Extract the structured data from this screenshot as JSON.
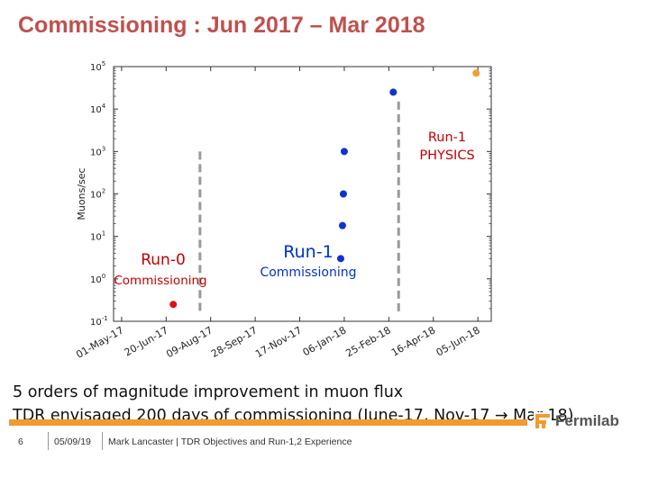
{
  "title": "Commissioning : Jun 2017 – Mar 2018",
  "chart_data": {
    "type": "scatter",
    "ylabel": "Muons/sec",
    "yscale": "log",
    "ylim": [
      0.1,
      100000
    ],
    "yticks": [
      {
        "base": "10",
        "exp": "5"
      },
      {
        "base": "10",
        "exp": "4"
      },
      {
        "base": "10",
        "exp": "3"
      },
      {
        "base": "10",
        "exp": "2"
      },
      {
        "base": "10",
        "exp": "1"
      },
      {
        "base": "10",
        "exp": "0"
      },
      {
        "base": "10",
        "exp": "-1"
      }
    ],
    "ytick_values": [
      100000,
      10000,
      1000,
      100,
      10,
      1,
      0.1
    ],
    "xlim": [
      "2017-04-22",
      "2018-06-20"
    ],
    "xticks": [
      {
        "label": "01-May-17",
        "date": "2017-05-01"
      },
      {
        "label": "20-Jun-17",
        "date": "2017-06-20"
      },
      {
        "label": "09-Aug-17",
        "date": "2017-08-09"
      },
      {
        "label": "28-Sep-17",
        "date": "2017-09-28"
      },
      {
        "label": "17-Nov-17",
        "date": "2017-11-17"
      },
      {
        "label": "06-Jan-18",
        "date": "2018-01-06"
      },
      {
        "label": "25-Feb-18",
        "date": "2018-02-25"
      },
      {
        "label": "16-Apr-18",
        "date": "2018-04-16"
      },
      {
        "label": "05-Jun-18",
        "date": "2018-06-05"
      }
    ],
    "points": [
      {
        "date": "2017-06-28",
        "value": 0.25,
        "color": "#dd1111"
      },
      {
        "date": "2018-01-02",
        "value": 3,
        "color": "#1133cc"
      },
      {
        "date": "2018-01-04",
        "value": 18,
        "color": "#1133cc"
      },
      {
        "date": "2018-01-05",
        "value": 100,
        "color": "#1133cc"
      },
      {
        "date": "2018-01-06",
        "value": 1000,
        "color": "#1133cc"
      },
      {
        "date": "2018-03-02",
        "value": 25000,
        "color": "#1133cc"
      },
      {
        "date": "2018-06-03",
        "value": 70000,
        "color": "#f0a030"
      }
    ],
    "vlines": [
      {
        "date": "2017-07-28",
        "value_from": 0.15,
        "value_to": 1000
      },
      {
        "date": "2018-03-08",
        "value_from": 0.15,
        "value_to": 15000
      }
    ],
    "annotations": [
      {
        "lines": [
          "Run-0"
        ],
        "color": "#c00000"
      },
      {
        "lines": [
          "Commissioning"
        ],
        "color": "#c00000"
      },
      {
        "lines": [
          "Run-1"
        ],
        "color": "#0033cc"
      },
      {
        "lines": [
          "Commissioning"
        ],
        "color": "#0033cc"
      },
      {
        "lines": [
          "Run-1",
          "PHYSICS"
        ],
        "color": "#c00000"
      }
    ],
    "grid": false
  },
  "notes": [
    "5 orders of magnitude improvement in muon flux",
    "TDR envisaged 200 days of commissioning (June-17, Nov-17 → Mar-18)"
  ],
  "footer": {
    "page": "6",
    "date": "05/09/19",
    "text": "Mark Lancaster | TDR Objectives and Run-1,2 Experience",
    "logo": "Fermilab"
  }
}
